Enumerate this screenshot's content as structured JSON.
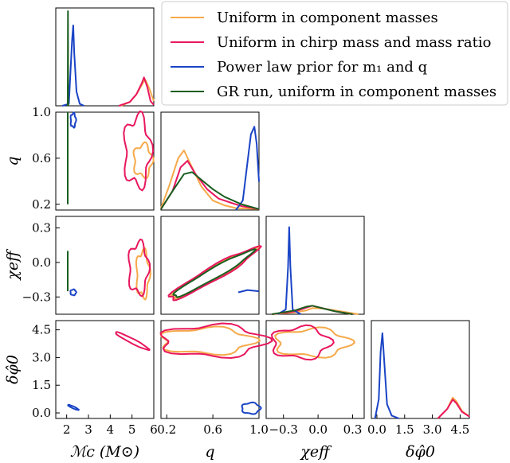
{
  "chart_data": {
    "type": "corner",
    "series": [
      {
        "name": "Uniform in component masses",
        "color": "#f5a94a"
      },
      {
        "name": "Uniform in chirp mass and mass ratio",
        "color": "#e8175d"
      },
      {
        "name": "Power law prior for m₁ and q",
        "color": "#1a44c6"
      },
      {
        "name": "GR run, uniform in component masses",
        "color": "#1b5e20"
      }
    ],
    "parameters": [
      {
        "label": "ℳc (M⊙)",
        "ticks": [
          "2",
          "3",
          "4",
          "5",
          "6"
        ],
        "range": [
          1.5,
          6.0
        ]
      },
      {
        "label": "q",
        "ticks": [
          "0.2",
          "0.6",
          "1.0"
        ],
        "range": [
          0.15,
          1.0
        ]
      },
      {
        "label": "χeff",
        "ticks": [
          "−0.3",
          "0.0",
          "0.3"
        ],
        "range": [
          -0.45,
          0.4
        ]
      },
      {
        "label": "δφ̂0",
        "ticks": [
          "0.0",
          "1.5",
          "3.0",
          "4.5"
        ],
        "range": [
          -0.3,
          5.0
        ]
      }
    ],
    "row_ticks": {
      "q": [
        "1.0",
        "0.6",
        "0.2"
      ],
      "chi_eff": [
        "0.3",
        "0.0",
        "−0.3"
      ],
      "dphi0": [
        "4.5",
        "3.0",
        "1.5",
        "0.0"
      ]
    },
    "marginals": {
      "mc": {
        "Uniform in component masses": [
          [
            4.5,
            0
          ],
          [
            4.9,
            0.04
          ],
          [
            5.2,
            0.12
          ],
          [
            5.45,
            0.22
          ],
          [
            5.6,
            0.28
          ],
          [
            5.8,
            0.18
          ],
          [
            6.0,
            0.05
          ]
        ],
        "Uniform in chirp mass and mass ratio": [
          [
            4.4,
            0
          ],
          [
            4.9,
            0.04
          ],
          [
            5.2,
            0.12
          ],
          [
            5.45,
            0.24
          ],
          [
            5.55,
            0.3
          ],
          [
            5.7,
            0.2
          ],
          [
            5.85,
            0.05
          ],
          [
            6.0,
            0.01
          ]
        ],
        "Power law prior for m₁ and q": [
          [
            1.8,
            0
          ],
          [
            2.1,
            0.02
          ],
          [
            2.25,
            0.7
          ],
          [
            2.3,
            0.85
          ],
          [
            2.35,
            0.55
          ],
          [
            2.45,
            0.15
          ],
          [
            2.6,
            0.02
          ],
          [
            2.8,
            0
          ]
        ],
        "GR run, uniform in component masses": [
          [
            2.05,
            0
          ],
          [
            2.06,
            1.0
          ],
          [
            2.07,
            0
          ]
        ]
      },
      "q": {
        "Uniform in component masses": [
          [
            0.15,
            0.02
          ],
          [
            0.22,
            0.25
          ],
          [
            0.3,
            0.55
          ],
          [
            0.35,
            0.63
          ],
          [
            0.4,
            0.5
          ],
          [
            0.5,
            0.25
          ],
          [
            0.6,
            0.1
          ],
          [
            0.7,
            0.05
          ],
          [
            0.8,
            0.02
          ],
          [
            1.0,
            0.01
          ]
        ],
        "Uniform in chirp mass and mass ratio": [
          [
            0.15,
            0.01
          ],
          [
            0.25,
            0.2
          ],
          [
            0.32,
            0.45
          ],
          [
            0.38,
            0.52
          ],
          [
            0.45,
            0.38
          ],
          [
            0.55,
            0.22
          ],
          [
            0.65,
            0.12
          ],
          [
            0.75,
            0.08
          ],
          [
            0.85,
            0.04
          ],
          [
            1.0,
            0.01
          ]
        ],
        "Power law prior for m₁ and q": [
          [
            0.8,
            0
          ],
          [
            0.86,
            0.1
          ],
          [
            0.9,
            0.5
          ],
          [
            0.93,
            0.8
          ],
          [
            0.96,
            0.88
          ],
          [
            0.98,
            0.7
          ],
          [
            1.0,
            0.3
          ]
        ],
        "GR run, uniform in component masses": [
          [
            0.15,
            0.01
          ],
          [
            0.25,
            0.2
          ],
          [
            0.35,
            0.38
          ],
          [
            0.42,
            0.4
          ],
          [
            0.5,
            0.32
          ],
          [
            0.6,
            0.22
          ],
          [
            0.7,
            0.14
          ],
          [
            0.85,
            0.06
          ],
          [
            1.0,
            0.01
          ]
        ]
      },
      "chi_eff": {
        "Uniform in component masses": [
          [
            -0.4,
            0
          ],
          [
            -0.2,
            0.02
          ],
          [
            -0.1,
            0.04
          ],
          [
            -0.05,
            0.065
          ],
          [
            0.05,
            0.06
          ],
          [
            0.15,
            0.04
          ],
          [
            0.25,
            0.02
          ],
          [
            0.35,
            0
          ]
        ],
        "Uniform in chirp mass and mass ratio": [
          [
            -0.4,
            0
          ],
          [
            -0.2,
            0.03
          ],
          [
            -0.1,
            0.07
          ],
          [
            -0.05,
            0.09
          ],
          [
            0.05,
            0.06
          ],
          [
            0.15,
            0.03
          ],
          [
            0.3,
            0
          ]
        ],
        "Power law prior for m₁ and q": [
          [
            -0.35,
            0
          ],
          [
            -0.28,
            0.05
          ],
          [
            -0.26,
            0.5
          ],
          [
            -0.25,
            0.92
          ],
          [
            -0.24,
            0.5
          ],
          [
            -0.22,
            0.05
          ],
          [
            -0.15,
            0
          ]
        ],
        "GR run, uniform in component masses": [
          [
            -0.4,
            0
          ],
          [
            -0.2,
            0.04
          ],
          [
            -0.1,
            0.08
          ],
          [
            -0.05,
            0.09
          ],
          [
            0.05,
            0.06
          ],
          [
            0.15,
            0.03
          ],
          [
            0.3,
            0
          ]
        ]
      },
      "dphi0": {
        "Uniform in component masses": [
          [
            3.3,
            0
          ],
          [
            3.8,
            0.1
          ],
          [
            4.1,
            0.22
          ],
          [
            4.3,
            0.18
          ],
          [
            4.6,
            0.08
          ],
          [
            5.0,
            0.02
          ]
        ],
        "Uniform in chirp mass and mass ratio": [
          [
            3.3,
            0
          ],
          [
            3.8,
            0.1
          ],
          [
            4.1,
            0.2
          ],
          [
            4.3,
            0.16
          ],
          [
            4.6,
            0.07
          ],
          [
            5.0,
            0.02
          ]
        ],
        "Power law prior for m₁ and q": [
          [
            -0.1,
            0
          ],
          [
            0.1,
            0.2
          ],
          [
            0.2,
            0.7
          ],
          [
            0.3,
            0.9
          ],
          [
            0.4,
            0.6
          ],
          [
            0.55,
            0.15
          ],
          [
            0.8,
            0.03
          ],
          [
            1.2,
            0
          ]
        ],
        "GR run, uniform in component masses": []
      }
    }
  }
}
